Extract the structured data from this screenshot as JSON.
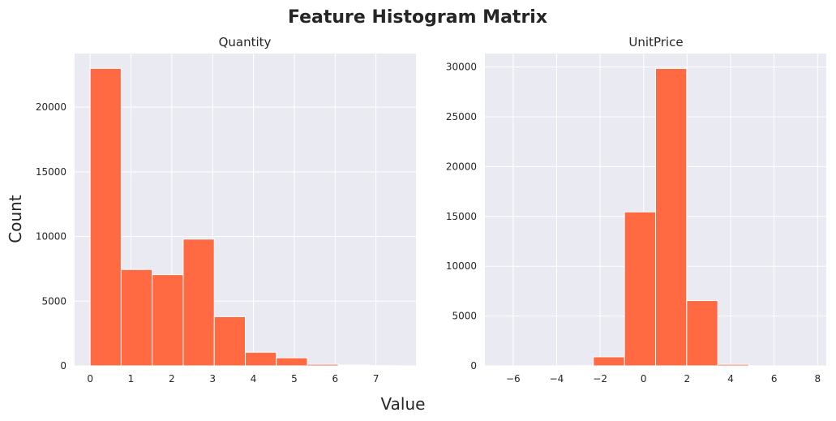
{
  "figure": {
    "title": "Feature Histogram Matrix",
    "xlabel": "Value",
    "ylabel": "Count",
    "background": "#eaeaf2",
    "bar_color": "#ff6a43"
  },
  "chart_data": [
    {
      "type": "bar",
      "title": "Quantity",
      "bin_edges": [
        0.0,
        0.76,
        1.52,
        2.28,
        3.04,
        3.8,
        4.56,
        5.32,
        6.08,
        6.84,
        7.6
      ],
      "values": [
        23000,
        7450,
        7050,
        9800,
        3800,
        1050,
        620,
        120,
        60,
        20
      ],
      "xlim": [
        -0.38,
        7.98
      ],
      "ylim": [
        0,
        24150
      ],
      "xticks": [
        0,
        1,
        2,
        3,
        4,
        5,
        6,
        7
      ],
      "xtick_labels": [
        "0",
        "1",
        "2",
        "3",
        "4",
        "5",
        "6",
        "7"
      ],
      "yticks": [
        0,
        5000,
        10000,
        15000,
        20000
      ],
      "ytick_labels": [
        "0",
        "5000",
        "10000",
        "15000",
        "20000"
      ],
      "grid": true
    },
    {
      "type": "bar",
      "title": "UnitPrice",
      "bin_edges": [
        -6.6,
        -5.17,
        -3.74,
        -2.31,
        -0.88,
        0.55,
        1.98,
        3.41,
        4.84,
        6.27,
        7.7
      ],
      "values": [
        5,
        10,
        30,
        900,
        15450,
        29850,
        6550,
        150,
        10,
        5
      ],
      "xlim": [
        -7.3,
        8.4
      ],
      "ylim": [
        0,
        31350
      ],
      "xticks": [
        -6,
        -4,
        -2,
        0,
        2,
        4,
        6,
        8
      ],
      "xtick_labels": [
        "−6",
        "−4",
        "−2",
        "0",
        "2",
        "4",
        "6",
        "8"
      ],
      "yticks": [
        0,
        5000,
        10000,
        15000,
        20000,
        25000,
        30000
      ],
      "ytick_labels": [
        "0",
        "5000",
        "10000",
        "15000",
        "20000",
        "25000",
        "30000"
      ],
      "grid": true
    }
  ]
}
